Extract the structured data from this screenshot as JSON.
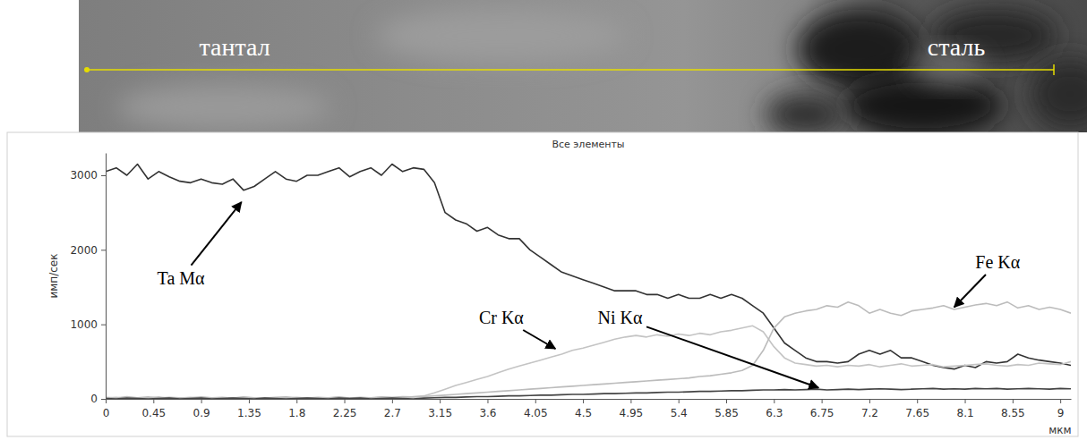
{
  "micrograph": {
    "labels": [
      "тантал",
      "сталь"
    ]
  },
  "chart_data": {
    "type": "line",
    "title": "Все элементы",
    "x_label": "мкм",
    "y_label": "имп/сек",
    "x": [
      0,
      0.1,
      0.2,
      0.3,
      0.4,
      0.5,
      0.6,
      0.7,
      0.8,
      0.9,
      1.0,
      1.1,
      1.2,
      1.3,
      1.4,
      1.5,
      1.6,
      1.7,
      1.8,
      1.9,
      2.0,
      2.1,
      2.2,
      2.3,
      2.4,
      2.5,
      2.6,
      2.7,
      2.8,
      2.9,
      3.0,
      3.1,
      3.2,
      3.3,
      3.4,
      3.5,
      3.6,
      3.7,
      3.8,
      3.9,
      4.0,
      4.1,
      4.2,
      4.3,
      4.4,
      4.5,
      4.6,
      4.7,
      4.8,
      4.9,
      5.0,
      5.1,
      5.2,
      5.3,
      5.4,
      5.5,
      5.6,
      5.7,
      5.8,
      5.9,
      6.0,
      6.1,
      6.2,
      6.3,
      6.4,
      6.5,
      6.6,
      6.7,
      6.8,
      6.9,
      7.0,
      7.1,
      7.2,
      7.3,
      7.4,
      7.5,
      7.6,
      7.7,
      7.8,
      7.9,
      8.0,
      8.1,
      8.2,
      8.3,
      8.4,
      8.5,
      8.6,
      8.7,
      8.8,
      8.9,
      9.0,
      9.1
    ],
    "xlim": [
      0,
      9.1
    ],
    "xticks": [
      0,
      0.45,
      0.9,
      1.35,
      1.8,
      2.25,
      2.7,
      3.15,
      3.6,
      4.05,
      4.5,
      4.95,
      5.4,
      5.85,
      6.3,
      6.75,
      7.2,
      7.65,
      8.1,
      8.55,
      9
    ],
    "ylim": [
      0,
      3300
    ],
    "yticks": [
      0,
      1000,
      2000,
      3000
    ],
    "grid": false,
    "series": [
      {
        "name": "Ta Mα",
        "color": "#333333",
        "values": [
          3050,
          3100,
          3000,
          3150,
          2950,
          3050,
          2980,
          2920,
          2900,
          2950,
          2900,
          2880,
          2950,
          2800,
          2850,
          2950,
          3050,
          2950,
          2920,
          3000,
          3000,
          3050,
          3100,
          2980,
          3050,
          3100,
          3000,
          3150,
          3050,
          3100,
          3080,
          2900,
          2500,
          2400,
          2350,
          2250,
          2300,
          2200,
          2150,
          2150,
          2000,
          1900,
          1800,
          1700,
          1650,
          1600,
          1550,
          1500,
          1450,
          1450,
          1450,
          1400,
          1400,
          1350,
          1400,
          1350,
          1350,
          1400,
          1350,
          1400,
          1350,
          1250,
          1150,
          950,
          750,
          650,
          550,
          500,
          500,
          480,
          500,
          600,
          650,
          600,
          650,
          550,
          550,
          500,
          450,
          420,
          400,
          450,
          420,
          500,
          480,
          500,
          600,
          550,
          520,
          500,
          480,
          450
        ],
        "annotation": {
          "xy": [
            1.28,
            2640
          ],
          "xytext": [
            0.71,
            1540
          ]
        }
      },
      {
        "name": "Cr Kα",
        "color": "#c4c4c4",
        "values": [
          10,
          20,
          5,
          15,
          10,
          25,
          5,
          10,
          20,
          15,
          10,
          15,
          5,
          20,
          10,
          15,
          10,
          5,
          20,
          10,
          15,
          10,
          20,
          5,
          15,
          10,
          20,
          15,
          10,
          30,
          40,
          80,
          130,
          180,
          220,
          260,
          300,
          350,
          400,
          440,
          480,
          520,
          560,
          600,
          650,
          680,
          720,
          760,
          800,
          830,
          850,
          830,
          860,
          840,
          870,
          850,
          880,
          860,
          900,
          920,
          950,
          980,
          900,
          700,
          550,
          480,
          460,
          440,
          450,
          430,
          450,
          440,
          460,
          430,
          450,
          470,
          440,
          450,
          460,
          430,
          440,
          450,
          460,
          470,
          450,
          440,
          460,
          450,
          480,
          470,
          460,
          500
        ],
        "annotation": {
          "xy": [
            4.24,
            672
          ],
          "xytext": [
            3.73,
            1008
          ]
        }
      },
      {
        "name": "Fe Kα",
        "color": "#bcbcbc",
        "values": [
          20,
          10,
          30,
          15,
          25,
          10,
          20,
          15,
          10,
          25,
          15,
          20,
          10,
          25,
          15,
          10,
          20,
          25,
          15,
          10,
          20,
          15,
          25,
          10,
          20,
          15,
          25,
          20,
          30,
          25,
          30,
          40,
          50,
          60,
          70,
          80,
          90,
          100,
          110,
          120,
          130,
          140,
          150,
          160,
          170,
          180,
          190,
          200,
          210,
          220,
          230,
          240,
          250,
          260,
          270,
          280,
          300,
          310,
          330,
          350,
          380,
          450,
          650,
          950,
          1100,
          1150,
          1180,
          1200,
          1250,
          1230,
          1300,
          1250,
          1150,
          1200,
          1150,
          1120,
          1180,
          1200,
          1220,
          1250,
          1200,
          1230,
          1260,
          1280,
          1250,
          1300,
          1220,
          1250,
          1200,
          1230,
          1200,
          1150
        ],
        "annotation": {
          "xy": [
            8.0,
            1230
          ],
          "xytext": [
            8.41,
            1752
          ]
        }
      },
      {
        "name": "Ni Kα",
        "color": "#444444",
        "values": [
          5,
          0,
          10,
          5,
          0,
          5,
          10,
          0,
          5,
          10,
          0,
          5,
          10,
          5,
          0,
          10,
          5,
          0,
          5,
          10,
          5,
          0,
          10,
          5,
          10,
          0,
          5,
          10,
          5,
          0,
          10,
          15,
          20,
          20,
          25,
          30,
          30,
          35,
          40,
          40,
          45,
          50,
          50,
          55,
          60,
          60,
          65,
          70,
          70,
          75,
          80,
          80,
          85,
          90,
          90,
          95,
          100,
          100,
          105,
          110,
          110,
          115,
          120,
          120,
          125,
          120,
          125,
          130,
          120,
          125,
          130,
          125,
          130,
          135,
          130,
          125,
          130,
          135,
          140,
          130,
          135,
          130,
          140,
          135,
          140,
          130,
          135,
          140,
          135,
          130,
          140,
          135
        ],
        "annotation": {
          "xy": [
            6.72,
            150
          ],
          "xytext": [
            4.85,
            1008
          ]
        }
      }
    ]
  }
}
